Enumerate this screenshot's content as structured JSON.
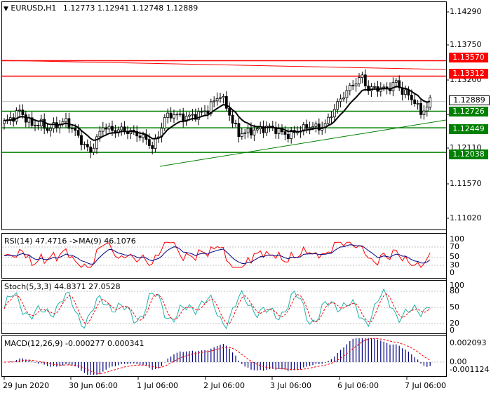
{
  "main": {
    "header": {
      "triangle": "▼",
      "symbol": "EURUSD,H1",
      "ohlc": "1.12773 1.12941 1.12748 1.12889"
    },
    "y_ticks": [
      "1.14290",
      "1.13750",
      "1.13200",
      "1.12660",
      "1.12110",
      "1.11570",
      "1.11020"
    ],
    "price_labels": [
      {
        "text": "1.13570",
        "bg": "#ff0000",
        "fg": "#ffffff"
      },
      {
        "text": "1.13312",
        "bg": "#ff0000",
        "fg": "#ffffff"
      },
      {
        "text": "1.12889",
        "bg": "#ffffff",
        "fg": "#000000"
      },
      {
        "text": "1.12726",
        "bg": "#008000",
        "fg": "#ffffff"
      },
      {
        "text": "1.12449",
        "bg": "#008000",
        "fg": "#ffffff"
      },
      {
        "text": "1.12038",
        "bg": "#008000",
        "fg": "#ffffff"
      }
    ]
  },
  "rsi": {
    "label": "RSI(14) 47.4716  ->MA(9) 46.1076",
    "ticks": [
      "100",
      "70",
      "50",
      "30",
      "0"
    ]
  },
  "stoch": {
    "label": "Stoch(5,3,3) 44.8371 27.0528",
    "ticks": [
      "100",
      "80",
      "50",
      "20",
      "0"
    ]
  },
  "macd": {
    "label": "MACD(12,26,9) -0.000277 0.000341",
    "ticks": [
      "0.002093",
      "0.00",
      "-0.001124"
    ]
  },
  "x_axis": [
    "29 Jun 2020",
    "30 Jun 06:00",
    "1 Jul 06:00",
    "2 Jul 06:00",
    "3 Jul 06:00",
    "6 Jul 06:00",
    "7 Jul 06:00"
  ],
  "colors": {
    "resistance": "#ff0000",
    "support": "#008000",
    "candle": "#000000",
    "ma": "#000000",
    "rsi_line": "#ff0000",
    "rsi_ma": "#000080",
    "stoch_main": "#20b2aa",
    "stoch_signal": "#ff0000",
    "macd_hist": "#000080",
    "macd_signal": "#ff0000",
    "grid": "#c0c0c0"
  },
  "chart_data": {
    "type": "candlestick",
    "title": "EURUSD,H1",
    "ohlc_last": {
      "open": 1.12773,
      "high": 1.12941,
      "low": 1.12748,
      "close": 1.12889
    },
    "ylim": [
      1.1075,
      1.1455
    ],
    "resistance_levels": [
      1.1357,
      1.13312
    ],
    "support_levels": [
      1.12726,
      1.12449,
      1.12038
    ],
    "current_price": 1.12889,
    "close_path": [
      [
        0,
        1.1254
      ],
      [
        3,
        1.1263
      ],
      [
        5,
        1.1274
      ],
      [
        7,
        1.126
      ],
      [
        9,
        1.125
      ],
      [
        12,
        1.1252
      ],
      [
        14,
        1.1242
      ],
      [
        17,
        1.125
      ],
      [
        20,
        1.1256
      ],
      [
        23,
        1.1238
      ],
      [
        26,
        1.1215
      ],
      [
        28,
        1.1205
      ],
      [
        30,
        1.1226
      ],
      [
        32,
        1.1248
      ],
      [
        35,
        1.124
      ],
      [
        38,
        1.1242
      ],
      [
        41,
        1.1238
      ],
      [
        44,
        1.1232
      ],
      [
        46,
        1.1225
      ],
      [
        48,
        1.1212
      ],
      [
        50,
        1.1232
      ],
      [
        52,
        1.1262
      ],
      [
        55,
        1.1268
      ],
      [
        58,
        1.1262
      ],
      [
        62,
        1.1266
      ],
      [
        66,
        1.1275
      ],
      [
        68,
        1.129
      ],
      [
        70,
        1.13
      ],
      [
        72,
        1.128
      ],
      [
        74,
        1.1255
      ],
      [
        76,
        1.1235
      ],
      [
        79,
        1.1238
      ],
      [
        82,
        1.1242
      ],
      [
        86,
        1.1246
      ],
      [
        89,
        1.124
      ],
      [
        92,
        1.1232
      ],
      [
        95,
        1.124
      ],
      [
        99,
        1.1248
      ],
      [
        102,
        1.1245
      ],
      [
        104,
        1.125
      ],
      [
        106,
        1.1268
      ],
      [
        108,
        1.1285
      ],
      [
        110,
        1.13
      ],
      [
        112,
        1.1312
      ],
      [
        114,
        1.1322
      ],
      [
        116,
        1.133
      ],
      [
        118,
        1.1308
      ],
      [
        120,
        1.1312
      ],
      [
        123,
        1.131
      ],
      [
        125,
        1.1312
      ],
      [
        127,
        1.1322
      ],
      [
        129,
        1.1305
      ],
      [
        131,
        1.13
      ],
      [
        133,
        1.1288
      ],
      [
        135,
        1.127
      ],
      [
        137,
        1.128
      ],
      [
        138,
        1.1289
      ]
    ]
  }
}
